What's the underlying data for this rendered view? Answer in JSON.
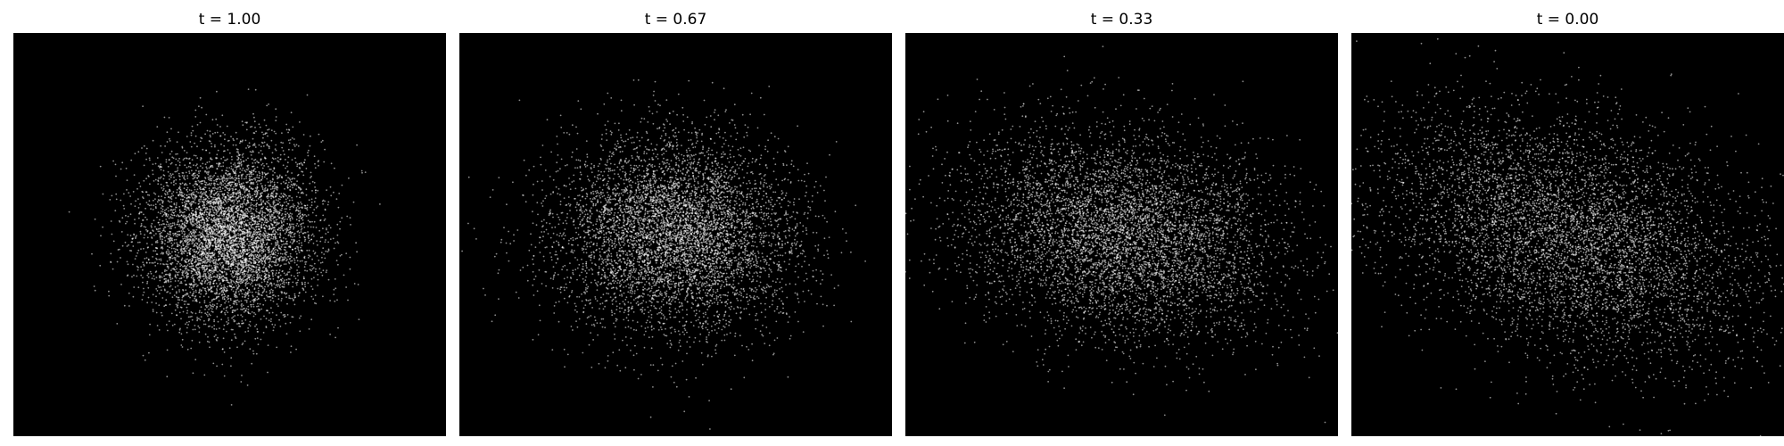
{
  "chart_data": [
    {
      "type": "scatter",
      "title": "t = 1.00",
      "point_color": "#ffffff",
      "background": "#000000",
      "point_count_approx": 6000,
      "distribution": {
        "center": [
          0.0,
          0.0
        ],
        "spread_x": 1.0,
        "spread_y": 1.0,
        "rotation_deg": 0
      },
      "axis_visible": false,
      "xlim": [
        -5.0,
        5.0
      ],
      "ylim": [
        -4.6,
        4.6
      ]
    },
    {
      "type": "scatter",
      "title": "t = 0.67",
      "point_color": "#ffffff",
      "background": "#000000",
      "point_count_approx": 6000,
      "distribution": {
        "center": [
          0.0,
          0.0
        ],
        "spread_x": 1.4,
        "spread_y": 1.1,
        "rotation_deg": -5
      },
      "axis_visible": false,
      "xlim": [
        -5.0,
        5.0
      ],
      "ylim": [
        -4.6,
        4.6
      ]
    },
    {
      "type": "scatter",
      "title": "t = 0.33",
      "point_color": "#ffffff",
      "background": "#000000",
      "point_count_approx": 6000,
      "distribution": {
        "center": [
          0.0,
          0.0
        ],
        "spread_x": 1.85,
        "spread_y": 1.15,
        "rotation_deg": -12
      },
      "axis_visible": false,
      "xlim": [
        -5.0,
        5.0
      ],
      "ylim": [
        -4.6,
        4.6
      ]
    },
    {
      "type": "scatter",
      "title": "t = 0.00",
      "point_color": "#ffffff",
      "background": "#000000",
      "point_count_approx": 6000,
      "distribution": {
        "center": [
          0.0,
          0.0
        ],
        "spread_x": 2.3,
        "spread_y": 1.25,
        "rotation_deg": -18
      },
      "axis_visible": false,
      "xlim": [
        -5.0,
        5.0
      ],
      "ylim": [
        -4.6,
        4.6
      ]
    }
  ]
}
